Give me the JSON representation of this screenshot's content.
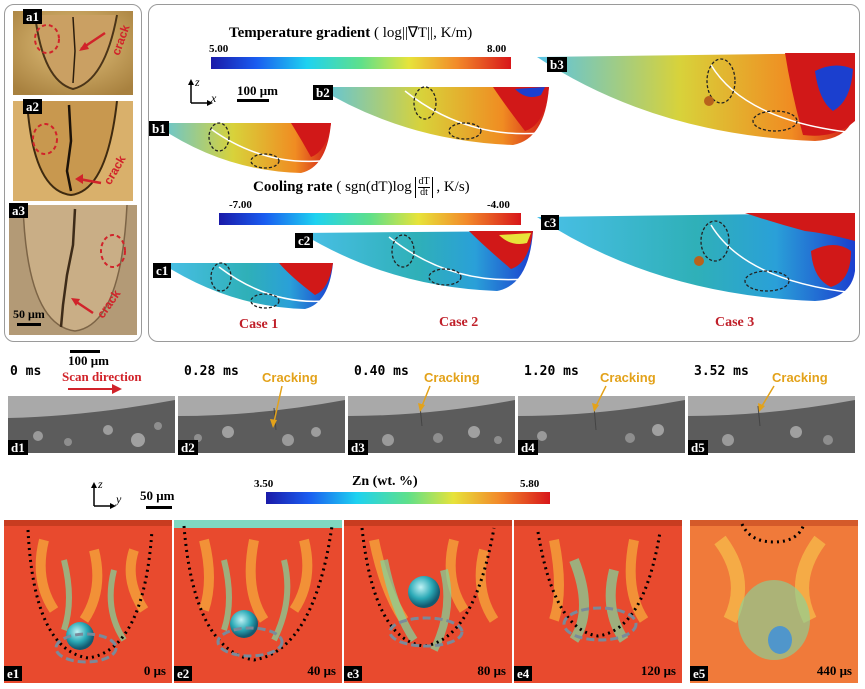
{
  "panel_a": {
    "labels": [
      "a1",
      "a2",
      "a3"
    ],
    "crack_text": "crack",
    "scale_bar": "50 μm"
  },
  "panel_b": {
    "title": "Temperature gradient",
    "title_formula": "( log||∇T||, K/m)",
    "colorbar_min": "5.00",
    "colorbar_max": "8.00",
    "axis_z": "z",
    "axis_x": "x",
    "scale_bar": "100 μm",
    "labels": [
      "b1",
      "b2",
      "b3"
    ]
  },
  "panel_c": {
    "title": "Cooling rate",
    "title_formula_pre": "( sgn(dT)log",
    "title_frac_num": "dT",
    "title_frac_den": "dt",
    "title_formula_post": ", K/s)",
    "colorbar_min": "-7.00",
    "colorbar_max": "-4.00",
    "labels": [
      "c1",
      "c2",
      "c3"
    ]
  },
  "cases": [
    "Case 1",
    "Case 2",
    "Case 3"
  ],
  "panel_d": {
    "scale_bar": "100 μm",
    "scan_direction": "Scan direction",
    "times": [
      "0 ms",
      "0.28 ms",
      "0.40 ms",
      "1.20 ms",
      "3.52 ms"
    ],
    "cracking_label": "Cracking",
    "labels": [
      "d1",
      "d2",
      "d3",
      "d4",
      "d5"
    ]
  },
  "panel_e": {
    "title": "Zn (wt. %)",
    "colorbar_min": "3.50",
    "colorbar_max": "5.80",
    "axis_z": "z",
    "axis_y": "y",
    "scale_bar": "50 μm",
    "times": [
      "0 μs",
      "40 μs",
      "80 μs",
      "120 μs",
      "440 μs"
    ],
    "labels": [
      "e1",
      "e2",
      "e3",
      "e4",
      "e5"
    ]
  },
  "colors": {
    "accent_red": "#c0202a",
    "cracking_orange": "#e3a21a",
    "frame_border": "#9a9a9a"
  }
}
